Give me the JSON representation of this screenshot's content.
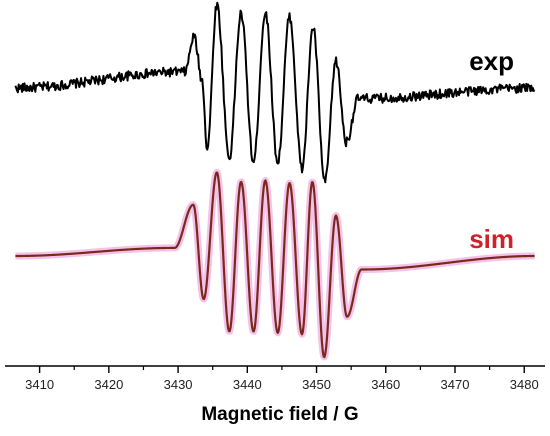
{
  "chart_data": {
    "type": "line",
    "title": "",
    "xlabel": "Magnetic field / G",
    "ylabel": "",
    "xlim": [
      3405,
      3483
    ],
    "x_ticks": [
      3410,
      3420,
      3430,
      3440,
      3450,
      3460,
      3470,
      3480
    ],
    "x_tick_labels": [
      "3410",
      "3420",
      "3430",
      "3440",
      "3450",
      "3460",
      "3470",
      "3480"
    ],
    "y_ticks_visible": false,
    "grid": false,
    "legend": "none",
    "series": [
      {
        "name": "exp",
        "label": "exp",
        "color": "#000000",
        "x_range": [
          3406.5,
          3481.5
        ],
        "baseline": 0.0,
        "noise": 0.035,
        "values": [
          {
            "x": 3431.0,
            "y": 0.12
          },
          {
            "x": 3432.3,
            "y": 0.38
          },
          {
            "x": 3433.5,
            "y": 0.05
          },
          {
            "x": 3434.2,
            "y": -0.45
          },
          {
            "x": 3435.6,
            "y": 0.62
          },
          {
            "x": 3437.4,
            "y": -0.52
          },
          {
            "x": 3439.1,
            "y": 0.55
          },
          {
            "x": 3440.9,
            "y": -0.55
          },
          {
            "x": 3442.6,
            "y": 0.56
          },
          {
            "x": 3444.4,
            "y": -0.55
          },
          {
            "x": 3446.1,
            "y": 0.53
          },
          {
            "x": 3447.9,
            "y": -0.6
          },
          {
            "x": 3449.5,
            "y": 0.45
          },
          {
            "x": 3451.2,
            "y": -0.7
          },
          {
            "x": 3452.8,
            "y": 0.2
          },
          {
            "x": 3454.3,
            "y": -0.4
          },
          {
            "x": 3456.0,
            "y": -0.08
          }
        ]
      },
      {
        "name": "sim",
        "label": "sim",
        "color": "#7a2a1a",
        "label_color": "#d0202a",
        "glow_color": "#f2b6e6",
        "x_range": [
          3406.5,
          3481.5
        ],
        "baseline": 0.0,
        "noise": 0.0,
        "values": [
          {
            "x": 3429.5,
            "y": 0.06
          },
          {
            "x": 3432.2,
            "y": 0.38
          },
          {
            "x": 3433.7,
            "y": -0.32
          },
          {
            "x": 3435.6,
            "y": 0.62
          },
          {
            "x": 3437.4,
            "y": -0.56
          },
          {
            "x": 3439.1,
            "y": 0.55
          },
          {
            "x": 3440.9,
            "y": -0.56
          },
          {
            "x": 3442.6,
            "y": 0.56
          },
          {
            "x": 3444.4,
            "y": -0.57
          },
          {
            "x": 3446.1,
            "y": 0.54
          },
          {
            "x": 3447.9,
            "y": -0.58
          },
          {
            "x": 3449.4,
            "y": 0.55
          },
          {
            "x": 3451.1,
            "y": -0.75
          },
          {
            "x": 3452.8,
            "y": 0.3
          },
          {
            "x": 3454.4,
            "y": -0.45
          },
          {
            "x": 3456.5,
            "y": -0.1
          }
        ]
      }
    ]
  }
}
